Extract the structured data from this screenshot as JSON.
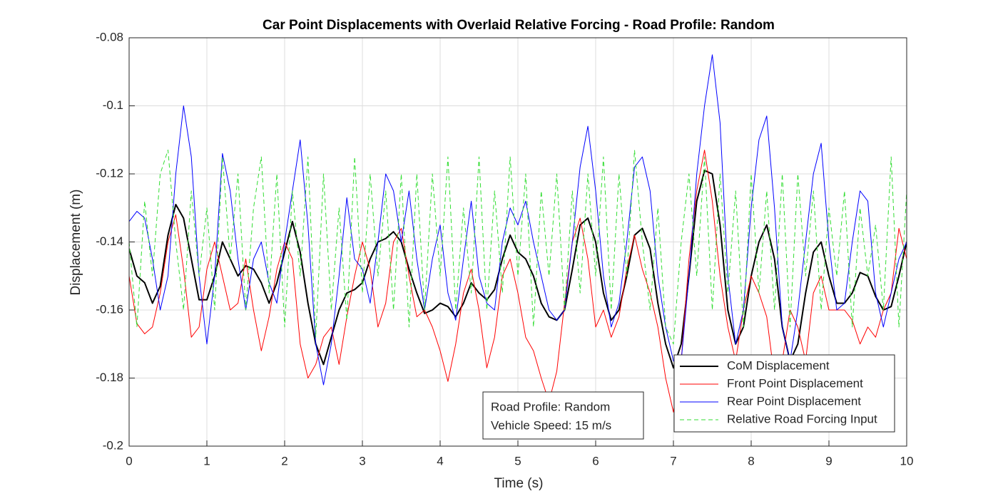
{
  "chart_data": {
    "type": "line",
    "title": "Car Point Displacements with Overlaid Relative Forcing - Road Profile: Random",
    "x_label": "Time (s)",
    "y_label": "Displacement (m)",
    "annotations": [
      "Road Profile: Random",
      "Vehicle Speed: 15 m/s"
    ],
    "xlim": [
      0,
      10
    ],
    "ylim": [
      -0.2,
      -0.08
    ],
    "xticks": [
      0,
      1,
      2,
      3,
      4,
      5,
      6,
      7,
      8,
      9,
      10
    ],
    "yticks": [
      -0.2,
      -0.18,
      -0.16,
      -0.14,
      -0.12,
      -0.1,
      -0.08
    ],
    "grid": true,
    "legend": "lower right",
    "x": [
      0,
      0.1,
      0.2,
      0.3,
      0.4,
      0.5,
      0.6,
      0.7,
      0.8,
      0.9,
      1,
      1.1,
      1.2,
      1.3,
      1.4,
      1.5,
      1.6,
      1.7,
      1.8,
      1.9,
      2,
      2.1,
      2.2,
      2.3,
      2.4,
      2.5,
      2.6,
      2.7,
      2.8,
      2.9,
      3,
      3.1,
      3.2,
      3.3,
      3.4,
      3.5,
      3.6,
      3.7,
      3.8,
      3.9,
      4,
      4.1,
      4.2,
      4.3,
      4.4,
      4.5,
      4.6,
      4.7,
      4.8,
      4.9,
      5,
      5.1,
      5.2,
      5.3,
      5.4,
      5.5,
      5.6,
      5.7,
      5.8,
      5.9,
      6,
      6.1,
      6.2,
      6.3,
      6.4,
      6.5,
      6.6,
      6.7,
      6.8,
      6.9,
      7,
      7.1,
      7.2,
      7.3,
      7.4,
      7.5,
      7.6,
      7.7,
      7.8,
      7.9,
      8,
      8.1,
      8.2,
      8.3,
      8.4,
      8.5,
      8.6,
      8.7,
      8.8,
      8.9,
      9,
      9.1,
      9.2,
      9.3,
      9.4,
      9.5,
      9.6,
      9.7,
      9.8,
      9.9,
      10
    ],
    "series": [
      {
        "name": "CoM Displacement",
        "color": "#000000",
        "line_width": 2,
        "line_style": "solid",
        "values": [
          -0.142,
          -0.15,
          -0.152,
          -0.158,
          -0.153,
          -0.138,
          -0.129,
          -0.133,
          -0.145,
          -0.157,
          -0.157,
          -0.15,
          -0.14,
          -0.145,
          -0.15,
          -0.147,
          -0.148,
          -0.152,
          -0.158,
          -0.152,
          -0.143,
          -0.134,
          -0.143,
          -0.158,
          -0.17,
          -0.176,
          -0.168,
          -0.16,
          -0.155,
          -0.154,
          -0.152,
          -0.145,
          -0.14,
          -0.139,
          -0.137,
          -0.14,
          -0.148,
          -0.155,
          -0.161,
          -0.16,
          -0.158,
          -0.159,
          -0.162,
          -0.158,
          -0.152,
          -0.155,
          -0.157,
          -0.154,
          -0.145,
          -0.138,
          -0.143,
          -0.145,
          -0.15,
          -0.158,
          -0.162,
          -0.163,
          -0.16,
          -0.148,
          -0.135,
          -0.133,
          -0.14,
          -0.155,
          -0.163,
          -0.16,
          -0.15,
          -0.138,
          -0.136,
          -0.142,
          -0.158,
          -0.17,
          -0.177,
          -0.17,
          -0.15,
          -0.128,
          -0.119,
          -0.12,
          -0.135,
          -0.16,
          -0.17,
          -0.165,
          -0.15,
          -0.14,
          -0.135,
          -0.145,
          -0.165,
          -0.175,
          -0.17,
          -0.155,
          -0.143,
          -0.14,
          -0.15,
          -0.158,
          -0.158,
          -0.155,
          -0.149,
          -0.15,
          -0.156,
          -0.16,
          -0.159,
          -0.15,
          -0.14
        ]
      },
      {
        "name": "Front Point Displacement",
        "color": "#ff0000",
        "line_width": 1,
        "line_style": "solid",
        "values": [
          -0.15,
          -0.164,
          -0.167,
          -0.165,
          -0.155,
          -0.14,
          -0.132,
          -0.148,
          -0.168,
          -0.165,
          -0.148,
          -0.14,
          -0.15,
          -0.16,
          -0.158,
          -0.145,
          -0.16,
          -0.172,
          -0.162,
          -0.148,
          -0.14,
          -0.145,
          -0.17,
          -0.18,
          -0.176,
          -0.168,
          -0.165,
          -0.176,
          -0.162,
          -0.15,
          -0.14,
          -0.148,
          -0.165,
          -0.158,
          -0.14,
          -0.136,
          -0.15,
          -0.162,
          -0.16,
          -0.165,
          -0.172,
          -0.181,
          -0.17,
          -0.155,
          -0.148,
          -0.16,
          -0.177,
          -0.168,
          -0.15,
          -0.145,
          -0.155,
          -0.168,
          -0.172,
          -0.18,
          -0.187,
          -0.178,
          -0.158,
          -0.14,
          -0.133,
          -0.145,
          -0.165,
          -0.16,
          -0.168,
          -0.162,
          -0.148,
          -0.138,
          -0.148,
          -0.155,
          -0.165,
          -0.18,
          -0.19,
          -0.175,
          -0.145,
          -0.125,
          -0.113,
          -0.128,
          -0.15,
          -0.165,
          -0.175,
          -0.16,
          -0.15,
          -0.155,
          -0.162,
          -0.18,
          -0.175,
          -0.16,
          -0.165,
          -0.175,
          -0.155,
          -0.15,
          -0.16,
          -0.16,
          -0.16,
          -0.163,
          -0.17,
          -0.165,
          -0.168,
          -0.16,
          -0.155,
          -0.136,
          -0.145
        ]
      },
      {
        "name": "Rear Point Displacement",
        "color": "#0000ff",
        "line_width": 1,
        "line_style": "solid",
        "values": [
          -0.134,
          -0.131,
          -0.133,
          -0.145,
          -0.16,
          -0.15,
          -0.12,
          -0.1,
          -0.115,
          -0.15,
          -0.17,
          -0.15,
          -0.114,
          -0.125,
          -0.145,
          -0.16,
          -0.145,
          -0.14,
          -0.152,
          -0.158,
          -0.14,
          -0.125,
          -0.11,
          -0.135,
          -0.17,
          -0.182,
          -0.17,
          -0.15,
          -0.127,
          -0.145,
          -0.148,
          -0.158,
          -0.14,
          -0.12,
          -0.125,
          -0.14,
          -0.125,
          -0.145,
          -0.16,
          -0.145,
          -0.135,
          -0.155,
          -0.163,
          -0.145,
          -0.128,
          -0.15,
          -0.158,
          -0.16,
          -0.14,
          -0.13,
          -0.135,
          -0.128,
          -0.14,
          -0.15,
          -0.16,
          -0.163,
          -0.16,
          -0.14,
          -0.118,
          -0.106,
          -0.125,
          -0.15,
          -0.165,
          -0.158,
          -0.14,
          -0.118,
          -0.115,
          -0.125,
          -0.15,
          -0.165,
          -0.175,
          -0.175,
          -0.15,
          -0.12,
          -0.1,
          -0.085,
          -0.105,
          -0.15,
          -0.17,
          -0.16,
          -0.13,
          -0.11,
          -0.103,
          -0.13,
          -0.165,
          -0.175,
          -0.16,
          -0.14,
          -0.12,
          -0.111,
          -0.14,
          -0.16,
          -0.158,
          -0.14,
          -0.125,
          -0.128,
          -0.155,
          -0.165,
          -0.155,
          -0.145,
          -0.14
        ]
      },
      {
        "name": "Relative Road Forcing Input",
        "color": "#33dd33",
        "line_width": 1,
        "line_style": "dashed",
        "values": [
          -0.14,
          -0.165,
          -0.128,
          -0.15,
          -0.12,
          -0.113,
          -0.14,
          -0.16,
          -0.125,
          -0.15,
          -0.13,
          -0.16,
          -0.115,
          -0.145,
          -0.12,
          -0.16,
          -0.13,
          -0.115,
          -0.155,
          -0.12,
          -0.165,
          -0.125,
          -0.15,
          -0.115,
          -0.168,
          -0.12,
          -0.16,
          -0.13,
          -0.163,
          -0.115,
          -0.155,
          -0.12,
          -0.15,
          -0.125,
          -0.16,
          -0.12,
          -0.165,
          -0.12,
          -0.16,
          -0.12,
          -0.15,
          -0.115,
          -0.16,
          -0.13,
          -0.155,
          -0.115,
          -0.16,
          -0.125,
          -0.155,
          -0.115,
          -0.15,
          -0.12,
          -0.165,
          -0.125,
          -0.15,
          -0.12,
          -0.16,
          -0.125,
          -0.155,
          -0.12,
          -0.15,
          -0.115,
          -0.16,
          -0.12,
          -0.15,
          -0.113,
          -0.14,
          -0.16,
          -0.13,
          -0.165,
          -0.17,
          -0.14,
          -0.12,
          -0.15,
          -0.115,
          -0.16,
          -0.12,
          -0.155,
          -0.125,
          -0.165,
          -0.12,
          -0.155,
          -0.125,
          -0.16,
          -0.12,
          -0.165,
          -0.12,
          -0.15,
          -0.125,
          -0.16,
          -0.13,
          -0.15,
          -0.125,
          -0.165,
          -0.13,
          -0.15,
          -0.135,
          -0.16,
          -0.115,
          -0.165,
          -0.125
        ]
      }
    ]
  }
}
